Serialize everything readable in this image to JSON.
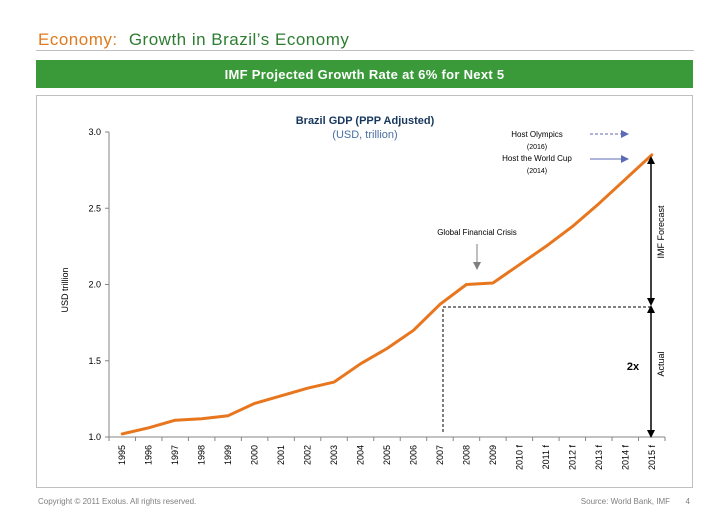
{
  "header": {
    "section": "Economy:",
    "title": "Growth in Brazil’s Economy"
  },
  "banner": {
    "text": "IMF Projected Growth Rate at 6% for Next 5"
  },
  "chart_data": {
    "type": "line",
    "title": "Brazil GDP (PPP Adjusted)",
    "subtitle": "(USD, trillion)",
    "ylabel": "USD trillion",
    "xlabel": "",
    "ylim": [
      1.0,
      3.0
    ],
    "yticks": [
      "1.0",
      "1.5",
      "2.0",
      "2.5",
      "3.0"
    ],
    "categories": [
      "1995",
      "1996",
      "1997",
      "1998",
      "1999",
      "2000",
      "2001",
      "2002",
      "2003",
      "2004",
      "2005",
      "2006",
      "2007",
      "2008",
      "2009",
      "2010 f",
      "2011 f",
      "2012 f",
      "2013 f",
      "2014 f",
      "2015 f"
    ],
    "series": [
      {
        "values": [
          1.02,
          1.06,
          1.11,
          1.12,
          1.14,
          1.22,
          1.27,
          1.32,
          1.36,
          1.48,
          1.58,
          1.7,
          1.87,
          2.0,
          2.01,
          2.13,
          2.25,
          2.38,
          2.53,
          2.69,
          2.85
        ],
        "color": "#e8761e"
      }
    ],
    "grid": false,
    "annotations": {
      "olympics": "Host Olympics",
      "olympics_year": "(2016)",
      "worldcup": "Host the World Cup",
      "worldcup_year": "(2014)",
      "crisis": "Global Financial Crisis",
      "forecast": "IMF Forecast",
      "actual": "Actual",
      "multiple": "2x"
    }
  },
  "footer": {
    "copyright": "Copyright © 2011 Exolus. All rights reserved.",
    "source": "Source: World Bank, IMF",
    "page": "4"
  }
}
